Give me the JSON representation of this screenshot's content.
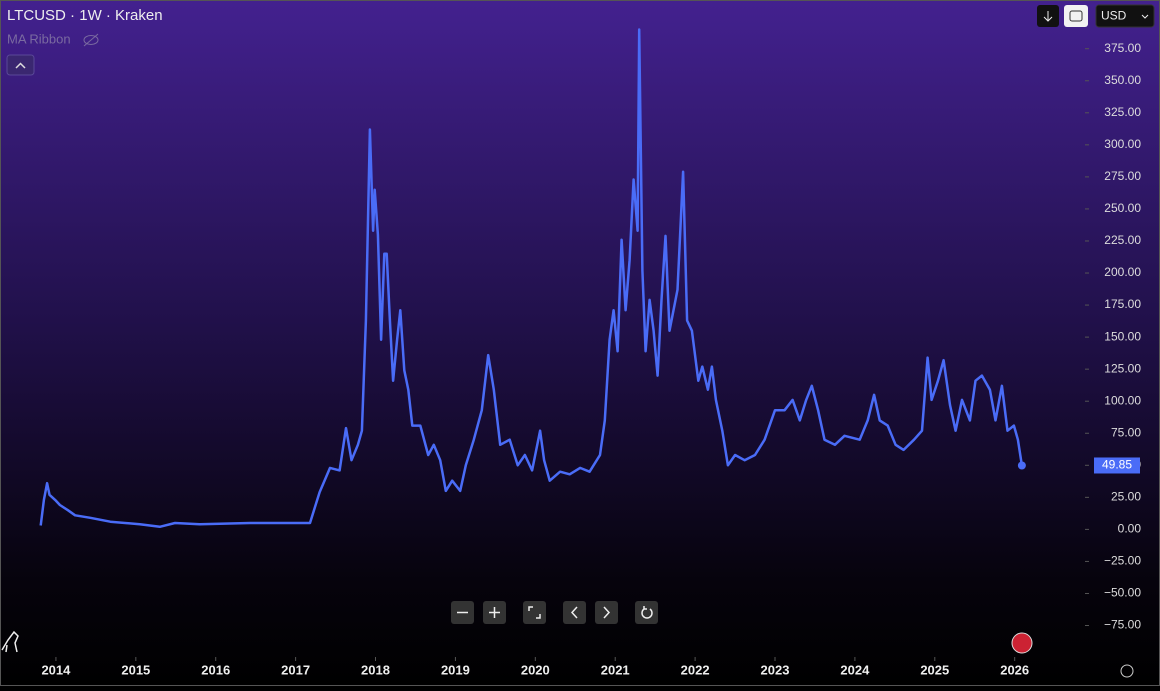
{
  "chart_data": {
    "type": "line",
    "title": "LTCUSD · 1W · Kraken",
    "indicator": "MA Ribbon",
    "currency": "USD",
    "xlim": [
      2013.3,
      2026.88
    ],
    "xticks": [
      2014,
      2015,
      2016,
      2017,
      2018,
      2019,
      2020,
      2021,
      2022,
      2023,
      2024,
      2025,
      2026
    ],
    "ylim": [
      -98,
      413
    ],
    "yticks": [
      {
        "value": -75,
        "label": "−75.00"
      },
      {
        "value": -50,
        "label": "−50.00"
      },
      {
        "value": -25,
        "label": "−25.00"
      },
      {
        "value": 0,
        "label": "0.00"
      },
      {
        "value": 25,
        "label": "25.00"
      },
      {
        "value": 50,
        "label": "50.00"
      },
      {
        "value": 75,
        "label": "75.00"
      },
      {
        "value": 100,
        "label": "100.00"
      },
      {
        "value": 125,
        "label": "125.00"
      },
      {
        "value": 150,
        "label": "150.00"
      },
      {
        "value": 175,
        "label": "175.00"
      },
      {
        "value": 200,
        "label": "200.00"
      },
      {
        "value": 225,
        "label": "225.00"
      },
      {
        "value": 250,
        "label": "250.00"
      },
      {
        "value": 275,
        "label": "275.00"
      },
      {
        "value": 300,
        "label": "300.00"
      },
      {
        "value": 325,
        "label": "325.00"
      },
      {
        "value": 350,
        "label": "350.00"
      },
      {
        "value": 375,
        "label": "375.00"
      }
    ],
    "x": [
      2013.81,
      2013.85,
      2013.89,
      2013.92,
      2013.99,
      2014.05,
      2014.15,
      2014.24,
      2014.43,
      2014.68,
      2015.05,
      2015.3,
      2015.49,
      2015.8,
      2016.43,
      2017.05,
      2017.18,
      2017.3,
      2017.43,
      2017.55,
      2017.63,
      2017.7,
      2017.78,
      2017.83,
      2017.88,
      2017.93,
      2017.97,
      2017.99,
      2018.03,
      2018.07,
      2018.11,
      2018.14,
      2018.18,
      2018.22,
      2018.27,
      2018.31,
      2018.36,
      2018.41,
      2018.46,
      2018.56,
      2018.66,
      2018.73,
      2018.81,
      2018.88,
      2018.96,
      2019.06,
      2019.13,
      2019.23,
      2019.33,
      2019.41,
      2019.48,
      2019.56,
      2019.68,
      2019.78,
      2019.87,
      2019.96,
      2020.06,
      2020.11,
      2020.18,
      2020.31,
      2020.43,
      2020.56,
      2020.68,
      2020.81,
      2020.87,
      2020.93,
      2020.98,
      2021.03,
      2021.08,
      2021.13,
      2021.18,
      2021.23,
      2021.28,
      2021.3,
      2021.34,
      2021.38,
      2021.43,
      2021.48,
      2021.53,
      2021.58,
      2021.63,
      2021.68,
      2021.78,
      2021.85,
      2021.9,
      2021.96,
      2022.04,
      2022.09,
      2022.16,
      2022.21,
      2022.26,
      2022.34,
      2022.41,
      2022.5,
      2022.62,
      2022.75,
      2022.87,
      2023.0,
      2023.12,
      2023.22,
      2023.31,
      2023.39,
      2023.46,
      2023.54,
      2023.62,
      2023.75,
      2023.87,
      2024.06,
      2024.16,
      2024.24,
      2024.31,
      2024.41,
      2024.51,
      2024.61,
      2024.74,
      2024.84,
      2024.91,
      2024.96,
      2025.04,
      2025.11,
      2025.19,
      2025.26,
      2025.34,
      2025.44,
      2025.51,
      2025.59,
      2025.69,
      2025.76,
      2025.84,
      2025.91,
      2025.99,
      2026.04,
      2026.09
    ],
    "series": [
      {
        "name": "LTCUSD",
        "color": "#4a6cf7",
        "values": [
          3,
          23,
          36,
          27,
          23,
          19,
          15,
          11,
          9,
          6,
          4,
          2,
          5,
          4,
          5,
          5,
          5,
          29,
          48,
          46,
          79,
          54,
          66,
          77,
          163,
          312,
          233,
          265,
          230,
          148,
          215,
          215,
          163,
          116,
          148,
          171,
          124,
          109,
          81,
          81,
          58,
          66,
          54,
          30,
          38,
          30,
          50,
          70,
          93,
          136,
          109,
          66,
          70,
          50,
          58,
          46,
          77,
          54,
          38,
          45,
          43,
          48,
          45,
          58,
          85,
          148,
          171,
          139,
          226,
          171,
          210,
          273,
          233,
          390,
          202,
          139,
          179,
          155,
          120,
          179,
          229,
          155,
          187,
          279,
          163,
          155,
          116,
          127,
          109,
          127,
          101,
          77,
          50,
          58,
          54,
          58,
          70,
          93,
          93,
          101,
          85,
          101,
          112,
          93,
          70,
          66,
          73,
          70,
          85,
          105,
          85,
          81,
          66,
          62,
          70,
          77,
          134,
          101,
          116,
          132,
          97,
          77,
          101,
          85,
          116,
          120,
          109,
          85,
          112,
          77,
          81,
          70,
          49.85
        ]
      }
    ]
  }
}
